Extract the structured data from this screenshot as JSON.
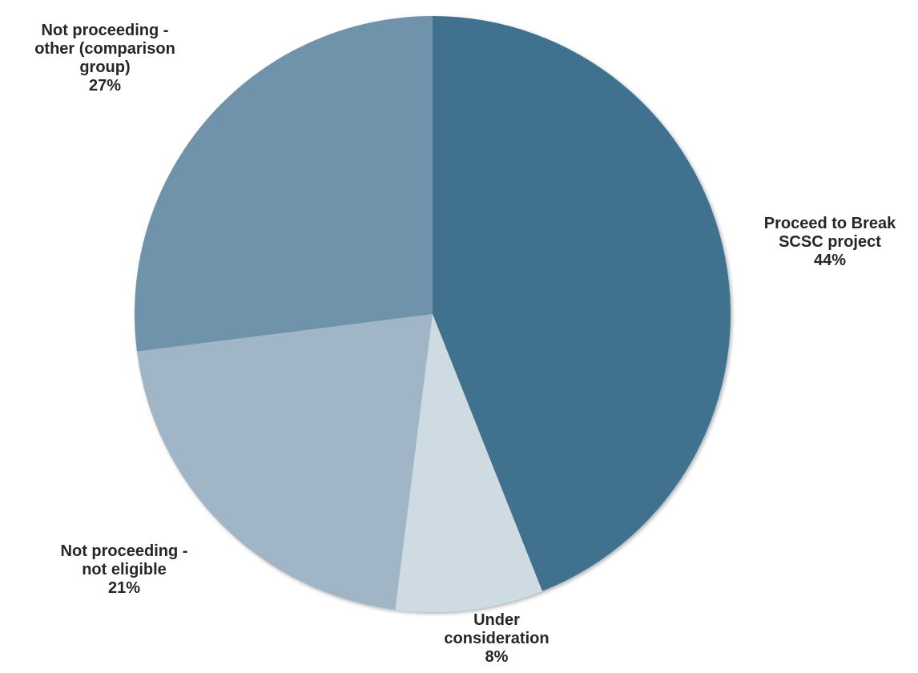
{
  "chart_data": {
    "type": "pie",
    "start_angle_deg": 0,
    "direction": "clockwise",
    "slices": [
      {
        "label_lines": [
          "Proceed to Break",
          "SCSC project"
        ],
        "value": 44,
        "value_label": "44%",
        "color": "#41718F"
      },
      {
        "label_lines": [
          "Under",
          "consideration"
        ],
        "value": 8,
        "value_label": "8%",
        "color": "#CEDBE3"
      },
      {
        "label_lines": [
          "Not proceeding -",
          "not eligible"
        ],
        "value": 21,
        "value_label": "21%",
        "color": "#A0B6C6"
      },
      {
        "label_lines": [
          "Not proceeding -",
          "other (comparison",
          "group)"
        ],
        "value": 27,
        "value_label": "27%",
        "color": "#6E93AB"
      }
    ]
  }
}
